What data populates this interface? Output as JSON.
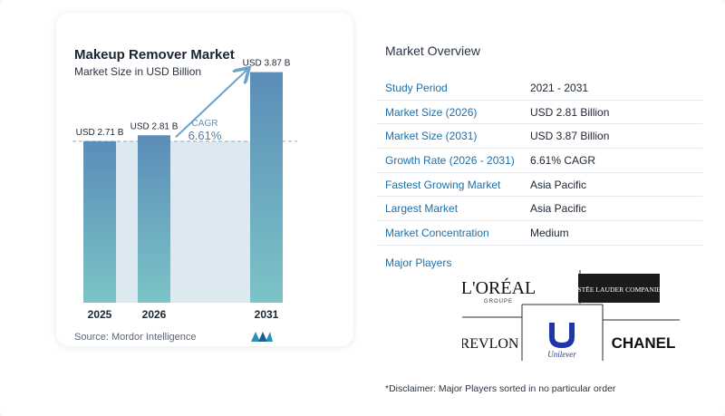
{
  "chart_data": {
    "type": "bar",
    "title": "Makeup Remover Market",
    "subtitle": "Market Size in USD Billion",
    "categories": [
      "2025",
      "2026",
      "2031"
    ],
    "values": [
      2.71,
      2.81,
      3.87
    ],
    "value_labels": [
      "USD 2.71 B",
      "USD 2.81 B",
      "USD 3.87 B"
    ],
    "cagr_label": "CAGR",
    "cagr_value": "6.61%",
    "ylim": [
      0,
      4.2
    ],
    "bar_color_top": "#5b8db8",
    "bar_color_bottom": "#7cc4c7",
    "band_color": "#dde9f1",
    "legend": "none"
  },
  "source": "Source:  Mordor Intelligence",
  "overview": {
    "title": "Market Overview",
    "rows": [
      {
        "label": "Study Period",
        "value": "2021 - 2031"
      },
      {
        "label": "Market Size (2026)",
        "value": "USD 2.81 Billion"
      },
      {
        "label": "Market Size (2031)",
        "value": "USD 3.87 Billion"
      },
      {
        "label": "Growth Rate (2026 - 2031)",
        "value": "6.61% CAGR"
      },
      {
        "label": "Fastest Growing Market",
        "value": "Asia Pacific"
      },
      {
        "label": "Largest Market",
        "value": "Asia Pacific"
      },
      {
        "label": "Market Concentration",
        "value": "Medium"
      }
    ],
    "players_title": "Major Players",
    "players": {
      "loreal": "L'ORÉAL",
      "loreal_sub": "GROUPE",
      "estee": "ESTĒE LAUDER COMPANIES",
      "revlon": "REVLON",
      "unilever": "Unilever",
      "chanel": "CHANEL"
    },
    "disclaimer": "*Disclaimer: Major Players sorted in no particular order"
  },
  "colors": {
    "accent": "#1e6fa8",
    "arrow": "#6aa3c8"
  }
}
